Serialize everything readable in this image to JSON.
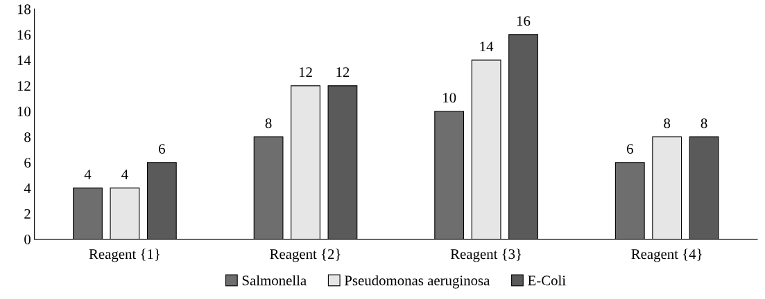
{
  "chart_data": {
    "type": "bar",
    "categories": [
      "Reagent {1}",
      "Reagent {2}",
      "Reagent {3}",
      "Reagent {4}"
    ],
    "series": [
      {
        "name": "Salmonella",
        "color": "#6e6e6e",
        "values": [
          4,
          8,
          10,
          6
        ]
      },
      {
        "name": "Pseudomonas aeruginosa",
        "color": "#e6e6e6",
        "values": [
          4,
          12,
          14,
          8
        ]
      },
      {
        "name": "E-Coli",
        "color": "#5a5a5a",
        "values": [
          6,
          12,
          16,
          8
        ]
      }
    ],
    "ylim": [
      0,
      18
    ],
    "yticks": [
      0,
      2,
      4,
      6,
      8,
      10,
      12,
      14,
      16,
      18
    ],
    "grid": false,
    "legend": "bottom",
    "data_labels": true
  }
}
